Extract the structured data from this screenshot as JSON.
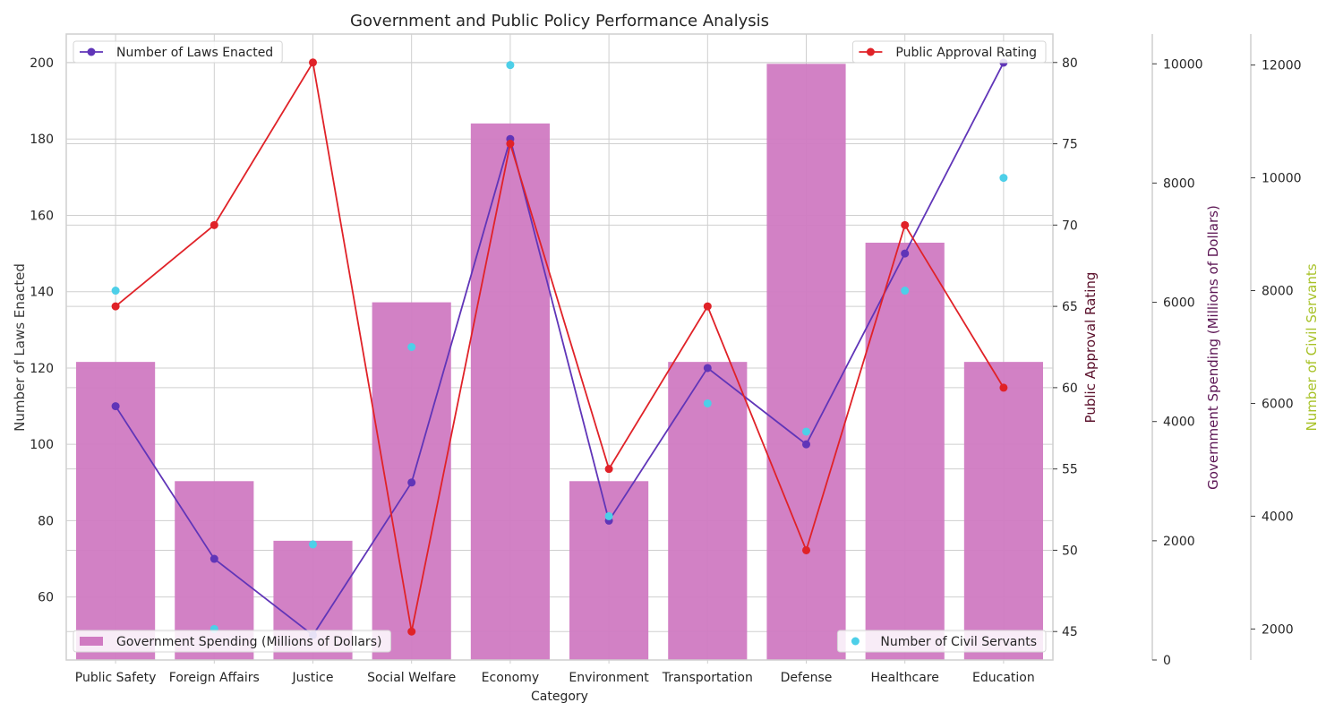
{
  "chart_data": {
    "type": "bar",
    "title": "Government and Public Policy Performance Analysis",
    "xlabel": "Category",
    "categories": [
      "Public Safety",
      "Foreign Affairs",
      "Justice",
      "Social Welfare",
      "Economy",
      "Environment",
      "Transportation",
      "Defense",
      "Healthcare",
      "Education"
    ],
    "grid": true,
    "axes": {
      "laws": {
        "label": "Number of Laws Enacted",
        "range": [
          43.5,
          207.5
        ],
        "ticks": [
          60,
          80,
          100,
          120,
          140,
          160,
          180,
          200
        ],
        "color": "#3a3a3a"
      },
      "approval": {
        "label": "Public Approval Rating",
        "range": [
          43.25,
          81.75
        ],
        "ticks": [
          45,
          50,
          55,
          60,
          65,
          70,
          75,
          80
        ],
        "color": "#5a0f2a"
      },
      "spending": {
        "label": "Government Spending (Millions of Dollars)",
        "range": [
          0,
          10500
        ],
        "ticks": [
          0,
          2000,
          4000,
          6000,
          8000,
          10000
        ],
        "color": "#5c1654"
      },
      "servants": {
        "label": "Number of Civil Servants",
        "range": [
          1450,
          12550
        ],
        "ticks": [
          2000,
          4000,
          6000,
          8000,
          10000,
          12000
        ],
        "color": "#a8c228"
      }
    },
    "series": [
      {
        "name": "Government Spending (Millions of Dollars)",
        "kind": "bar",
        "axis": "spending",
        "color": "#d07ac2",
        "values": [
          5000,
          3000,
          2000,
          6000,
          9000,
          3000,
          5000,
          10000,
          7000,
          5000
        ],
        "legend_position": "bottom-left"
      },
      {
        "name": "Number of Laws Enacted",
        "kind": "line",
        "axis": "laws",
        "color": "#6035b8",
        "values": [
          110,
          70,
          50,
          90,
          180,
          80,
          120,
          100,
          150,
          200
        ],
        "legend_position": "top-left"
      },
      {
        "name": "Public Approval Rating",
        "kind": "line",
        "axis": "approval",
        "color": "#e02228",
        "values": [
          65,
          70,
          80,
          45,
          75,
          55,
          65,
          50,
          70,
          60
        ],
        "legend_position": "top-right"
      },
      {
        "name": "Number of Civil Servants",
        "kind": "scatter",
        "axis": "servants",
        "color": "#4dcfe8",
        "values": [
          8000,
          2000,
          3500,
          7000,
          12000,
          4000,
          6000,
          5500,
          8000,
          10000
        ],
        "legend_position": "bottom-right"
      }
    ]
  }
}
